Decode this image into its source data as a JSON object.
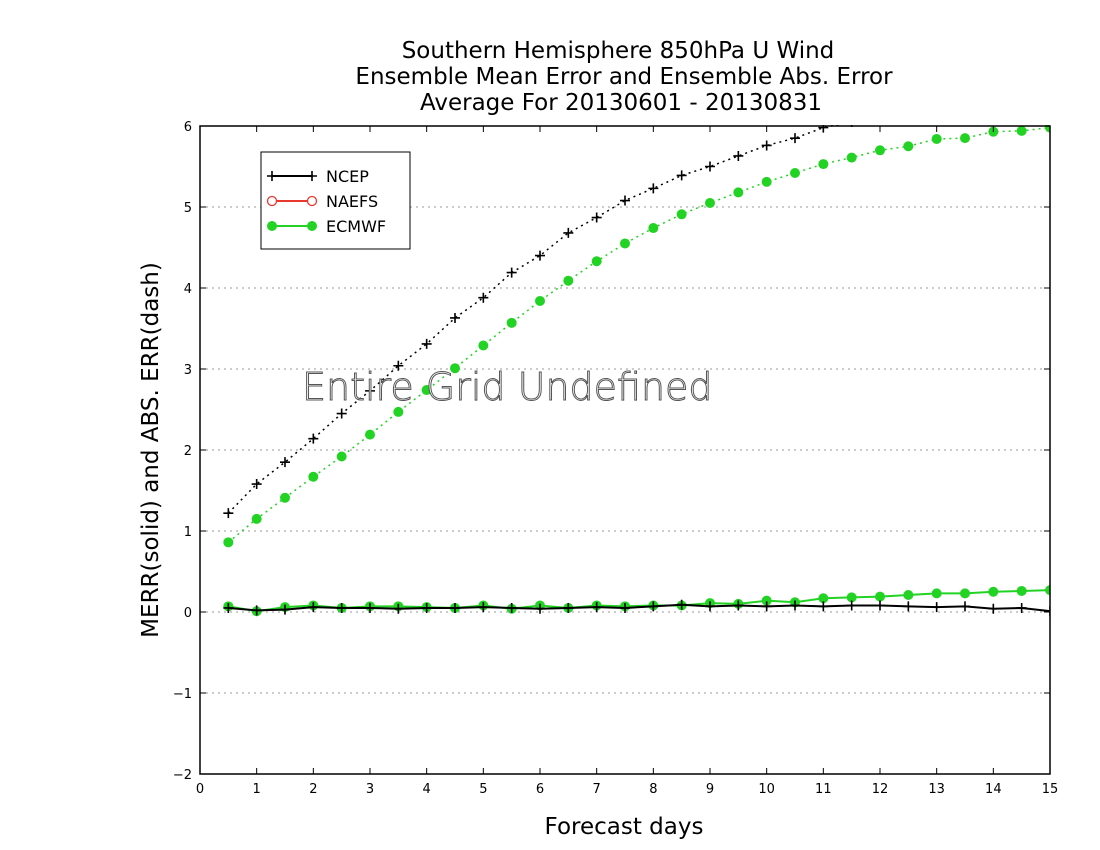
{
  "chart_data": {
    "type": "line",
    "title": [
      "Southern Hemisphere 850hPa U Wind",
      "Ensemble Mean Error and Ensemble Abs. Error",
      "Average For 20130601 - 20130831"
    ],
    "xlabel": "Forecast days",
    "ylabel": "MERR(solid) and ABS. ERR(dash)",
    "xlim": [
      0,
      15
    ],
    "ylim": [
      -2,
      6
    ],
    "xticks": [
      "0",
      "1",
      "2",
      "3",
      "4",
      "5",
      "6",
      "7",
      "8",
      "9",
      "10",
      "11",
      "12",
      "13",
      "14",
      "15"
    ],
    "yticks": [
      "−2",
      "−1",
      "0",
      "1",
      "2",
      "3",
      "4",
      "5",
      "6"
    ],
    "grid": "horizontal-dotted",
    "legend_position": "top-left",
    "overlay_text": "Entire Grid Undefined",
    "x": [
      0.5,
      1,
      1.5,
      2,
      2.5,
      3,
      3.5,
      4,
      4.5,
      5,
      5.5,
      6,
      6.5,
      7,
      7.5,
      8,
      8.5,
      9,
      9.5,
      10,
      10.5,
      11,
      11.5,
      12,
      12.5,
      13,
      13.5,
      14,
      14.5,
      15
    ],
    "series": [
      {
        "name": "NCEP",
        "color": "#000000",
        "marker": "plus",
        "merr": [
          0.05,
          0.02,
          0.03,
          0.06,
          0.05,
          0.05,
          0.04,
          0.05,
          0.05,
          0.06,
          0.05,
          0.04,
          0.05,
          0.06,
          0.05,
          0.07,
          0.09,
          0.07,
          0.08,
          0.07,
          0.08,
          0.07,
          0.08,
          0.08,
          0.07,
          0.06,
          0.07,
          0.04,
          0.05,
          0.01
        ],
        "abs_err": [
          1.22,
          1.58,
          1.85,
          2.14,
          2.45,
          2.73,
          3.04,
          3.31,
          3.63,
          3.88,
          4.19,
          4.4,
          4.68,
          4.87,
          5.08,
          5.23,
          5.39,
          5.5,
          5.63,
          5.76,
          5.85,
          5.98,
          6.05,
          6.1,
          6.15,
          6.2,
          6.25,
          6.3,
          6.35,
          6.4
        ]
      },
      {
        "name": "NAEFS",
        "color": "#e8382f",
        "marker": "open-circle",
        "merr": [],
        "abs_err": []
      },
      {
        "name": "ECMWF",
        "color": "#22d323",
        "marker": "filled-circle",
        "merr": [
          0.07,
          0.01,
          0.06,
          0.08,
          0.05,
          0.07,
          0.07,
          0.06,
          0.05,
          0.08,
          0.04,
          0.08,
          0.05,
          0.08,
          0.07,
          0.08,
          0.08,
          0.11,
          0.1,
          0.14,
          0.12,
          0.17,
          0.18,
          0.19,
          0.21,
          0.23,
          0.23,
          0.25,
          0.26,
          0.27
        ],
        "abs_err": [
          0.86,
          1.15,
          1.41,
          1.67,
          1.92,
          2.19,
          2.47,
          2.74,
          3.01,
          3.29,
          3.57,
          3.84,
          4.09,
          4.33,
          4.55,
          4.74,
          4.91,
          5.05,
          5.18,
          5.31,
          5.42,
          5.53,
          5.61,
          5.7,
          5.75,
          5.84,
          5.85,
          5.93,
          5.94,
          5.98
        ]
      }
    ]
  }
}
